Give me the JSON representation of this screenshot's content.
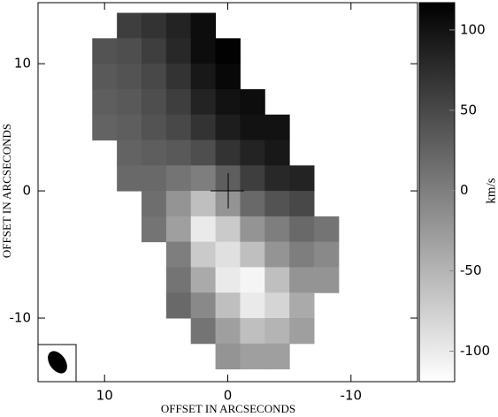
{
  "chart_data": {
    "type": "heatmap",
    "xlabel": "OFFSET IN ARCSECONDS",
    "ylabel": "OFFSET IN ARCSECONDS",
    "x": [
      10,
      8,
      6,
      4,
      2,
      0,
      -2,
      -4,
      -6,
      -8
    ],
    "y": [
      13,
      11,
      9,
      7,
      5,
      3,
      1,
      -1,
      -3,
      -5,
      -7,
      -9,
      -11,
      -13
    ],
    "cell": 2,
    "values": [
      [
        null,
        60,
        70,
        85,
        105,
        null,
        null,
        null,
        null,
        null
      ],
      [
        40,
        45,
        60,
        80,
        105,
        115,
        null,
        null,
        null,
        null
      ],
      [
        35,
        40,
        50,
        70,
        95,
        110,
        null,
        null,
        null,
        null
      ],
      [
        30,
        35,
        45,
        60,
        85,
        100,
        105,
        null,
        null,
        null
      ],
      [
        25,
        30,
        40,
        50,
        70,
        90,
        100,
        100,
        null,
        null
      ],
      [
        null,
        25,
        30,
        35,
        45,
        70,
        85,
        95,
        null,
        null
      ],
      [
        null,
        20,
        20,
        10,
        0,
        30,
        60,
        80,
        85,
        null
      ],
      [
        null,
        null,
        15,
        -20,
        -60,
        -20,
        20,
        40,
        50,
        null
      ],
      [
        null,
        null,
        10,
        -30,
        -100,
        -70,
        -20,
        0,
        20,
        10
      ],
      [
        null,
        null,
        null,
        0,
        -70,
        -90,
        -60,
        -20,
        0,
        -10
      ],
      [
        null,
        null,
        null,
        10,
        -40,
        -100,
        -110,
        -60,
        -20,
        -20
      ],
      [
        null,
        null,
        null,
        20,
        -10,
        -60,
        -100,
        -80,
        -40,
        null
      ],
      [
        null,
        null,
        null,
        null,
        10,
        -30,
        -60,
        -50,
        -30,
        null
      ],
      [
        null,
        null,
        null,
        null,
        null,
        -20,
        -30,
        -30,
        null,
        null
      ]
    ],
    "xlim": [
      15.4,
      -15.4
    ],
    "ylim": [
      -15,
      14.8
    ],
    "xticks": [
      10,
      0,
      -10
    ],
    "yticks": [
      10,
      0,
      -10
    ],
    "colorbar": {
      "label": "km/s",
      "lim": [
        -119,
        117
      ],
      "ticks": [
        100,
        50,
        0,
        -50,
        -100
      ]
    }
  }
}
